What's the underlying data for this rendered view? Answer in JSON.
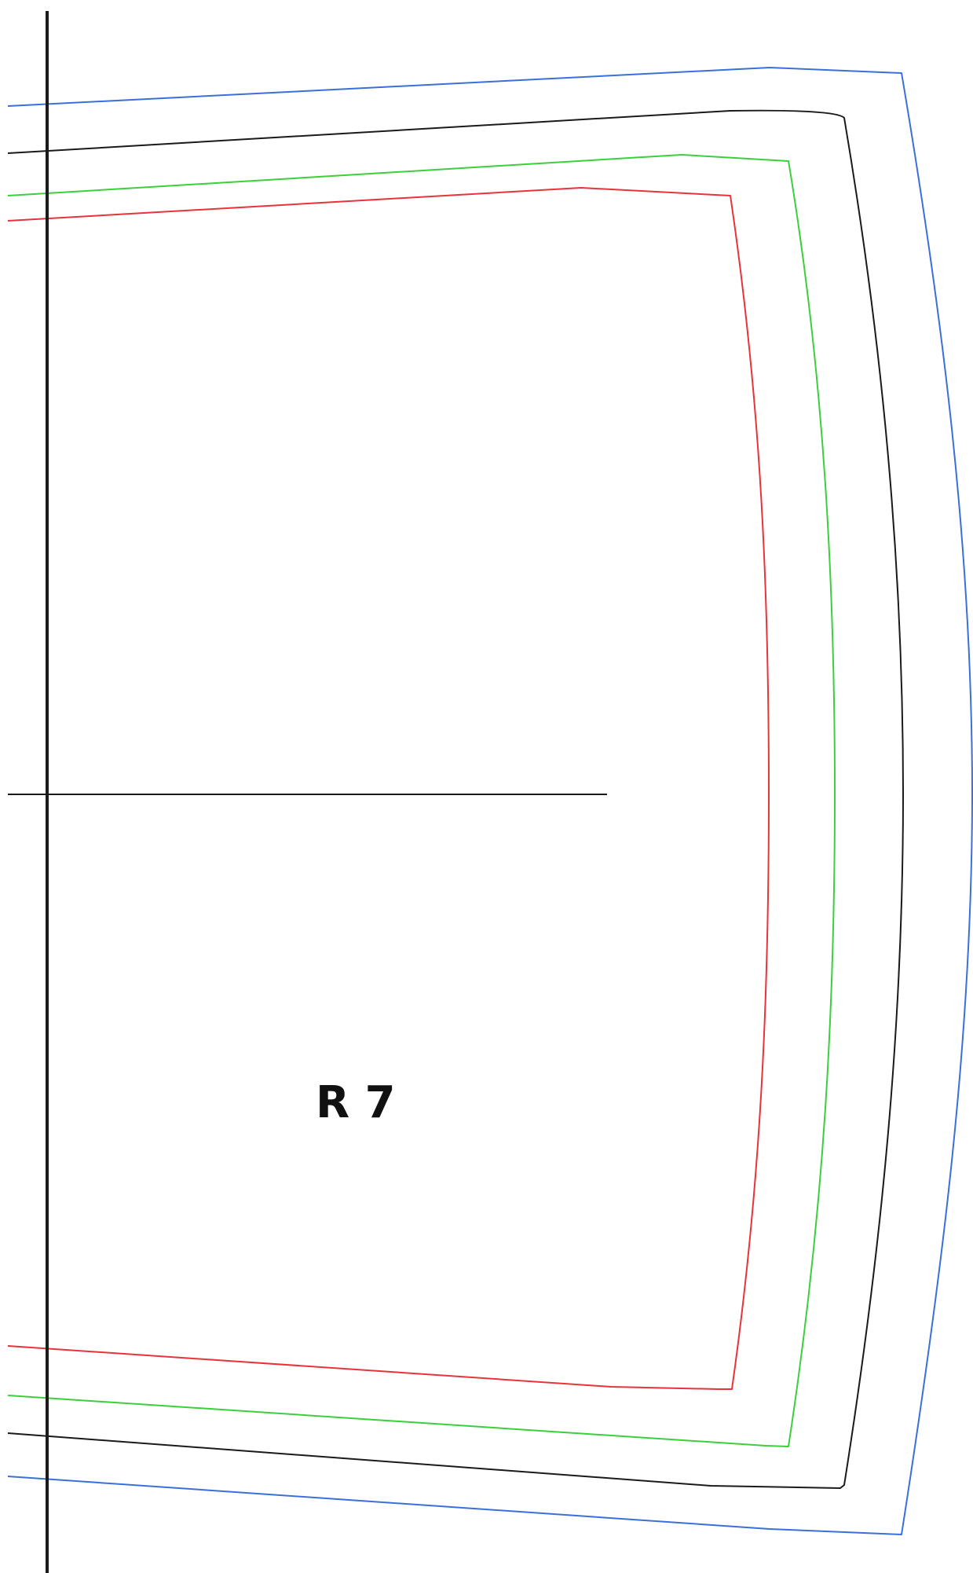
{
  "diagram": {
    "label": "R 7",
    "colors": {
      "blue": "#3b6fd9",
      "black": "#1a1a1a",
      "green": "#3ccf3c",
      "red": "#e8333a"
    }
  }
}
